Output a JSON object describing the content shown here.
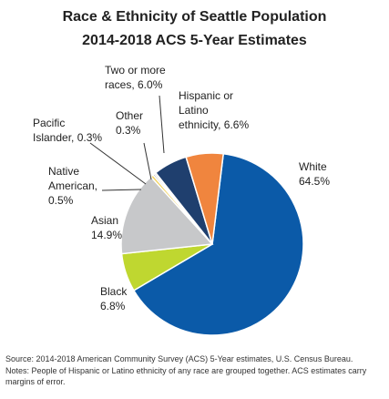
{
  "chart_data": {
    "type": "pie",
    "title": "Race & Ethnicity of Seattle Population",
    "subtitle": "2014-2018 ACS 5-Year Estimates",
    "slices": [
      {
        "lines": [
          "White",
          "64.5%"
        ],
        "value": 64.5,
        "color": "#0b5aa8"
      },
      {
        "lines": [
          "Black",
          "6.8%"
        ],
        "value": 6.8,
        "color": "#bfd730"
      },
      {
        "lines": [
          "Asian",
          "14.9%"
        ],
        "value": 14.9,
        "color": "#c7c8ca"
      },
      {
        "lines": [
          "Native",
          "American,",
          "0.5%"
        ],
        "value": 0.5,
        "color": "#f2d25b"
      },
      {
        "lines": [
          "Pacific",
          "Islander, 0.3%"
        ],
        "value": 0.3,
        "color": "#7a7a7a"
      },
      {
        "lines": [
          "Other",
          "0.3%"
        ],
        "value": 0.3,
        "color": "#bcbec0"
      },
      {
        "lines": [
          "Two or more",
          "races, 6.0%"
        ],
        "value": 6.0,
        "color": "#1f3f6e"
      },
      {
        "lines": [
          "Hispanic or",
          "Latino",
          "ethnicity, 6.6%"
        ],
        "value": 6.6,
        "color": "#f0853e"
      }
    ]
  },
  "source_note": "Source: 2014-2018 American Community Survey (ACS) 5-Year estimates, U.S. Census Bureau.",
  "notes": "Notes: People of Hispanic or Latino ethnicity of any race are grouped together. ACS estimates carry margins of error."
}
